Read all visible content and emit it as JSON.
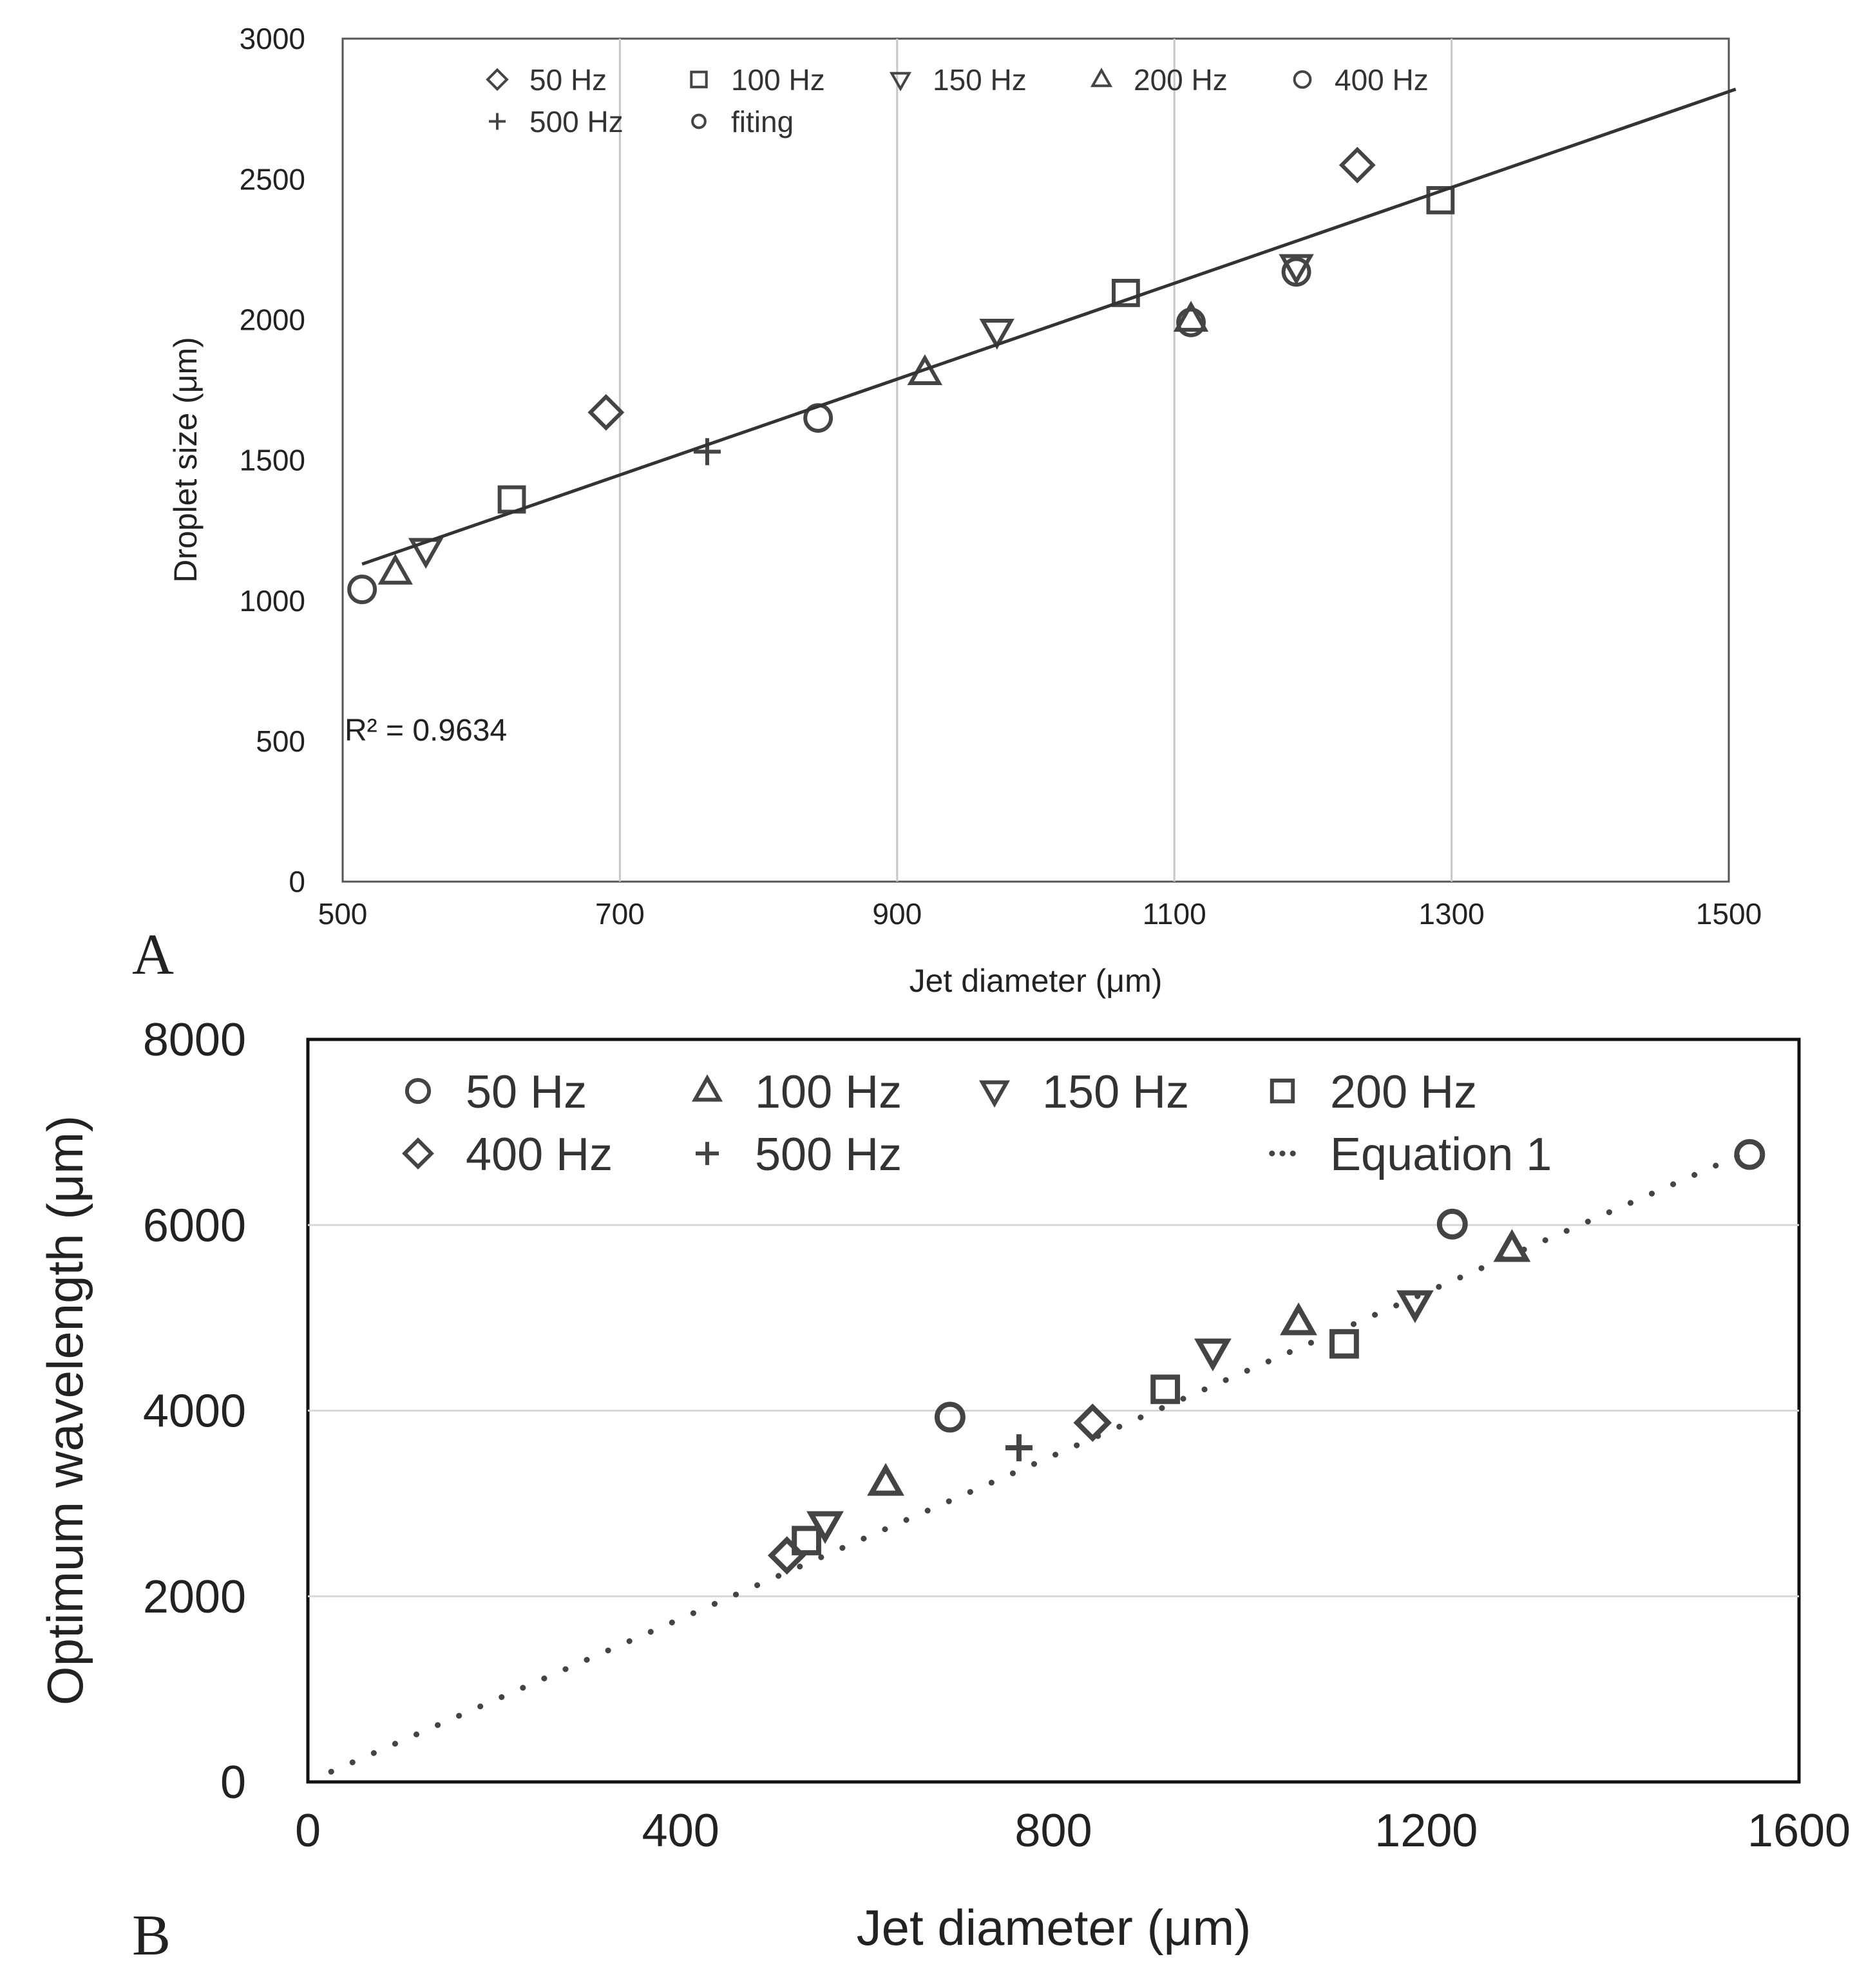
{
  "chart_data": [
    {
      "panel_label": "A",
      "type": "scatter",
      "xlabel": "Jet diameter (μm)",
      "ylabel": "Droplet size (μm)",
      "xlim": [
        500,
        1500
      ],
      "ylim": [
        0,
        3000
      ],
      "xticks": [
        500,
        700,
        900,
        1100,
        1300,
        1500
      ],
      "yticks": [
        0,
        500,
        1000,
        1500,
        2000,
        2500,
        3000
      ],
      "grid": "vertical",
      "legend_position": "top-left",
      "legend": [
        "50 Hz",
        "100 Hz",
        "150 Hz",
        "200 Hz",
        "400 Hz",
        "500 Hz",
        "fiting"
      ],
      "annotation": "R² = 0.9634",
      "series": [
        {
          "name": "50 Hz",
          "marker": "diamond",
          "points": [
            [
              690,
              1670
            ],
            [
              1232,
              2550
            ]
          ]
        },
        {
          "name": "100 Hz",
          "marker": "square",
          "points": [
            [
              622,
              1360
            ],
            [
              1065,
              2095
            ],
            [
              1292,
              2425
            ]
          ]
        },
        {
          "name": "150 Hz",
          "marker": "triangle-down",
          "points": [
            [
              560,
              1180
            ],
            [
              972,
              1960
            ],
            [
              1188,
              2190
            ]
          ]
        },
        {
          "name": "200 Hz",
          "marker": "triangle-up",
          "points": [
            [
              538,
              1100
            ],
            [
              920,
              1810
            ],
            [
              1112,
              2000
            ]
          ]
        },
        {
          "name": "400 Hz",
          "marker": "circle",
          "points": [
            [
              514,
              1040
            ],
            [
              843,
              1650
            ],
            [
              1112,
              1990
            ],
            [
              1188,
              2170
            ]
          ]
        },
        {
          "name": "500 Hz",
          "marker": "plus",
          "points": [
            [
              763,
              1530
            ]
          ]
        },
        {
          "name": "fiting",
          "marker": "line",
          "points": [
            [
              514,
              1130
            ],
            [
              1505,
              2820
            ]
          ]
        }
      ]
    },
    {
      "panel_label": "B",
      "type": "scatter",
      "xlabel": "Jet diameter (μm)",
      "ylabel": "Optimum wavelength (μm)",
      "xlim": [
        0,
        1600
      ],
      "ylim": [
        0,
        8000
      ],
      "xticks": [
        0,
        400,
        800,
        1200,
        1600
      ],
      "yticks": [
        0,
        2000,
        4000,
        6000,
        8000
      ],
      "grid": "horizontal",
      "legend_position": "top-left",
      "legend": [
        "50 Hz",
        "100 Hz",
        "150 Hz",
        "200 Hz",
        "400 Hz",
        "500 Hz",
        "Equation 1"
      ],
      "series": [
        {
          "name": "50 Hz",
          "marker": "circle",
          "points": [
            [
              689,
              3930
            ],
            [
              1228,
              6010
            ],
            [
              1547,
              6760
            ]
          ]
        },
        {
          "name": "100 Hz",
          "marker": "triangle-up",
          "points": [
            [
              620,
              3220
            ],
            [
              1063,
              4950
            ],
            [
              1292,
              5740
            ]
          ]
        },
        {
          "name": "150 Hz",
          "marker": "triangle-down",
          "points": [
            [
              555,
              2780
            ],
            [
              971,
              4640
            ],
            [
              1188,
              5160
            ]
          ]
        },
        {
          "name": "200 Hz",
          "marker": "square",
          "points": [
            [
              535,
              2600
            ],
            [
              920,
              4230
            ],
            [
              1112,
              4720
            ]
          ]
        },
        {
          "name": "400 Hz",
          "marker": "diamond",
          "points": [
            [
              514,
              2440
            ],
            [
              842,
              3870
            ]
          ]
        },
        {
          "name": "500 Hz",
          "marker": "plus",
          "points": [
            [
              763,
              3600
            ]
          ]
        },
        {
          "name": "Equation 1",
          "marker": "dotted-line",
          "points": [
            [
              25,
              110
            ],
            [
              1547,
              6800
            ]
          ]
        }
      ]
    }
  ]
}
